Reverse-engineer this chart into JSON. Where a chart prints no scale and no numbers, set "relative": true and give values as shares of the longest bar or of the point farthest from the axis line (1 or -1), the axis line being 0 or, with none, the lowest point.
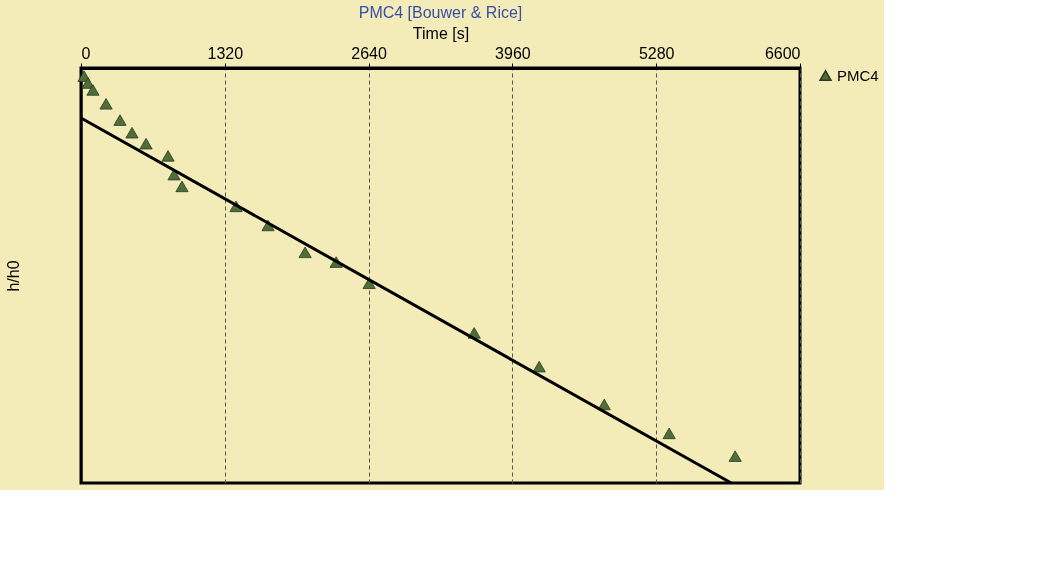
{
  "chart_data": {
    "type": "scatter",
    "title": "PMC4 [Bouwer & Rice]",
    "xlabel": "Time [s]",
    "ylabel": "h/h0",
    "relative": true,
    "xlim": [
      0,
      6600
    ],
    "xticks": [
      0,
      1320,
      2640,
      3960,
      5280,
      6600
    ],
    "grid": "x",
    "legend": "top right",
    "series": [
      {
        "name": "PMC4",
        "marker": "triangle",
        "color": "#4f6e3a",
        "x": [
          28,
          64,
          110,
          230,
          358,
          468,
          597,
          799,
          854,
          927,
          1423,
          1717,
          2057,
          2342,
          2645,
          3609,
          4206,
          4803,
          5399,
          6005
        ],
        "values": [
          1.0,
          0.983,
          0.966,
          0.932,
          0.892,
          0.861,
          0.834,
          0.804,
          0.758,
          0.729,
          0.68,
          0.633,
          0.567,
          0.543,
          0.491,
          0.369,
          0.286,
          0.193,
          0.122,
          0.066
        ]
      },
      {
        "type": "line",
        "color": "#000000",
        "line_style": "solid",
        "x": [
          0,
          5969
        ],
        "values": [
          0.897,
          0
        ]
      }
    ]
  }
}
